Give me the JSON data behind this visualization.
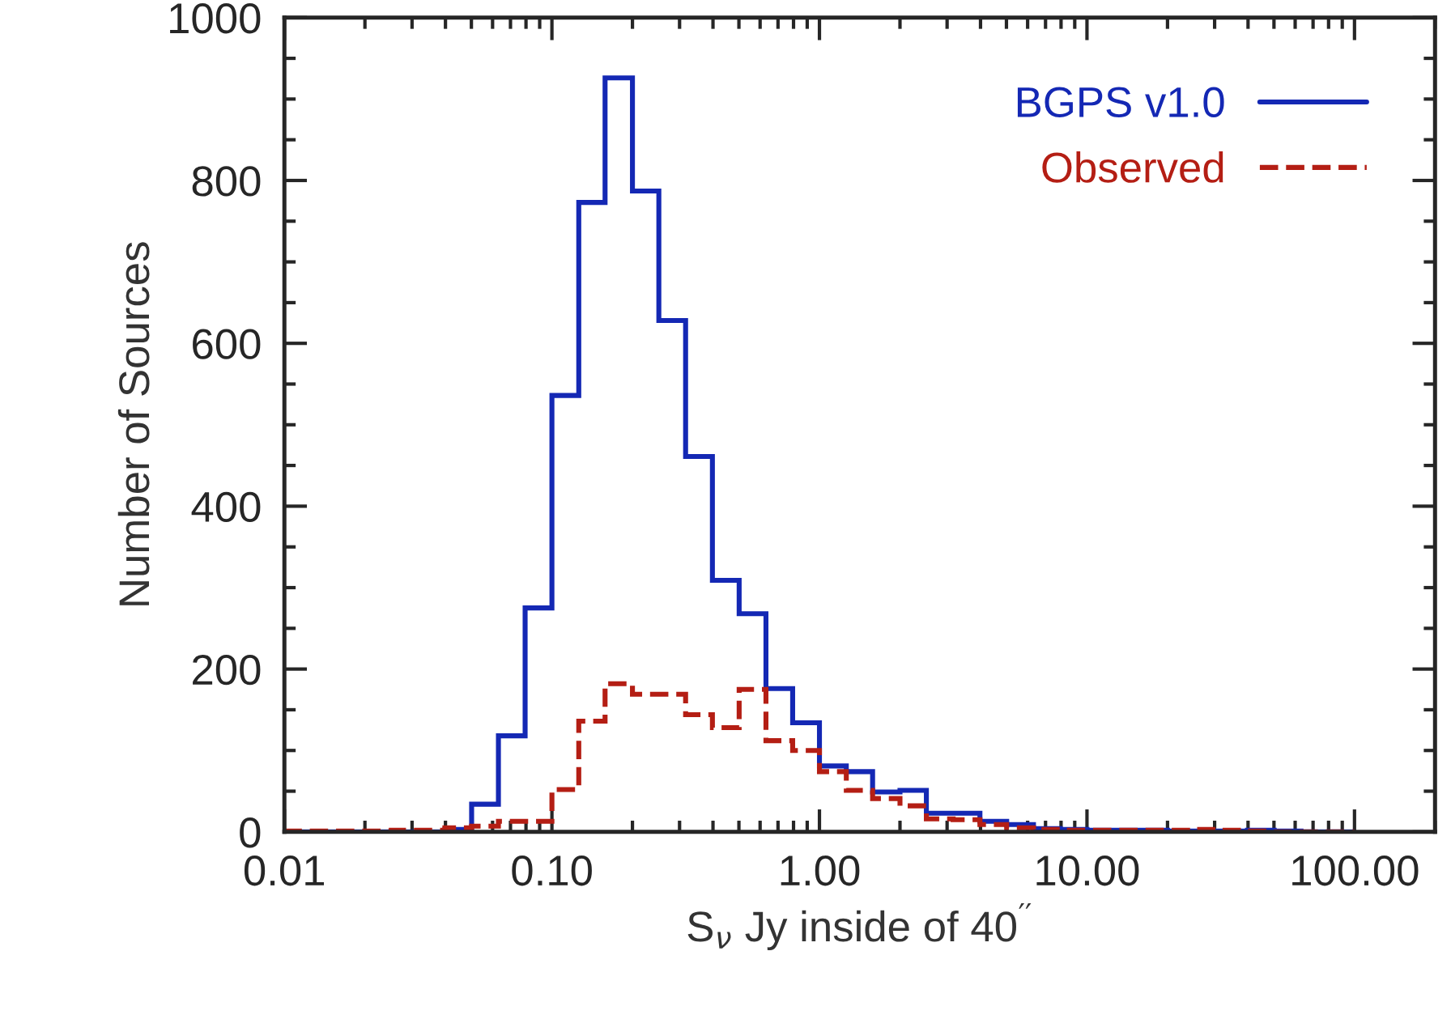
{
  "chart_data": {
    "type": "histogram",
    "xlabel": "S$_{ν}$ Jy inside of 40$^{′′}$",
    "ylabel": "Number of Sources",
    "bins": [
      0.01,
      0.0126,
      0.0158,
      0.02,
      0.0251,
      0.0316,
      0.0398,
      0.0501,
      0.0631,
      0.0794,
      0.1,
      0.126,
      0.158,
      0.2,
      0.251,
      0.316,
      0.398,
      0.501,
      0.631,
      0.794,
      1.0,
      1.26,
      1.58,
      2.0,
      2.51,
      3.16,
      3.98,
      5.01,
      6.31,
      7.94,
      10.0,
      12.6,
      15.8,
      20.0,
      25.1,
      31.6,
      39.8,
      50.1,
      63.1,
      79.4,
      100.0
    ],
    "series": [
      {
        "name": "BGPS v1.0",
        "color": "#1428b4",
        "line_style": "solid",
        "values": [
          0,
          0,
          0,
          0,
          0,
          0,
          3,
          34,
          118,
          275,
          536,
          773,
          926,
          787,
          628,
          461,
          309,
          268,
          176,
          134,
          81,
          74,
          49,
          51,
          23,
          23,
          13,
          9,
          4,
          3,
          2,
          2,
          2,
          1,
          1,
          1,
          2,
          1,
          0,
          0
        ]
      },
      {
        "name": "Observed",
        "color": "#b41e14",
        "line_style": "dashed",
        "values": [
          1,
          1,
          1,
          1,
          2,
          2,
          5,
          7,
          13,
          13,
          52,
          136,
          182,
          169,
          169,
          144,
          128,
          175,
          112,
          100,
          74,
          51,
          41,
          32,
          16,
          15,
          9,
          5,
          3,
          2,
          2,
          2,
          2,
          2,
          3,
          2,
          1,
          0,
          0,
          0
        ]
      }
    ],
    "log": "x",
    "xlim": [
      0.01,
      200
    ],
    "xticks": [
      {
        "value": 0.01,
        "label": "0.01"
      },
      {
        "value": 0.1,
        "label": "0.10"
      },
      {
        "value": 1,
        "label": "1.00"
      },
      {
        "value": 10,
        "label": "10.00"
      },
      {
        "value": 100,
        "label": "100.00"
      }
    ],
    "ylim": [
      0,
      1000
    ],
    "yticks": [
      0,
      200,
      400,
      600,
      800,
      1000
    ],
    "grid": false,
    "legend": "top right"
  }
}
